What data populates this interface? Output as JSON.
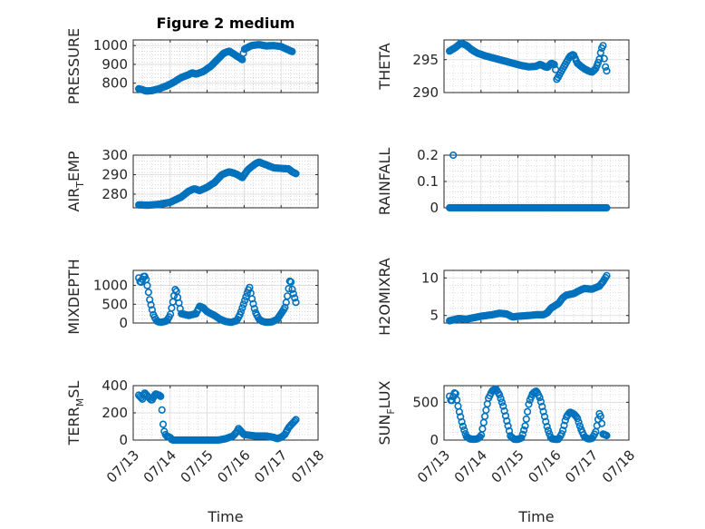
{
  "chart_data": [
    {
      "type": "scatter",
      "title": "Figure 2 medium",
      "ylabel": "PRESSURE",
      "ylabel_sub": "",
      "xlabel": "",
      "xlim": [
        "07/13",
        "07/18"
      ],
      "ylim": [
        750,
        1030
      ],
      "yticks": [
        800,
        900,
        1000
      ],
      "show_xticklabels": false,
      "color": "#0072bd",
      "marker": "circle",
      "grid": true,
      "anchors": [
        [
          0.15,
          770
        ],
        [
          0.25,
          765
        ],
        [
          0.35,
          758
        ],
        [
          0.5,
          760
        ],
        [
          0.7,
          770
        ],
        [
          0.9,
          785
        ],
        [
          1.1,
          805
        ],
        [
          1.3,
          830
        ],
        [
          1.5,
          845
        ],
        [
          1.6,
          855
        ],
        [
          1.7,
          848
        ],
        [
          1.9,
          862
        ],
        [
          2.1,
          890
        ],
        [
          2.3,
          930
        ],
        [
          2.45,
          960
        ],
        [
          2.6,
          970
        ],
        [
          2.8,
          945
        ],
        [
          2.95,
          925
        ],
        [
          3.0,
          980
        ],
        [
          3.2,
          1000
        ],
        [
          3.4,
          1005
        ],
        [
          3.6,
          998
        ],
        [
          3.8,
          1000
        ],
        [
          4.0,
          995
        ],
        [
          4.1,
          985
        ],
        [
          4.3,
          968
        ]
      ]
    },
    {
      "type": "scatter",
      "title": "",
      "ylabel": "THETA",
      "ylabel_sub": "",
      "xlabel": "",
      "xlim": [
        "07/13",
        "07/18"
      ],
      "ylim": [
        290,
        298
      ],
      "yticks": [
        290,
        295
      ],
      "show_xticklabels": false,
      "color": "#0072bd",
      "marker": "circle",
      "grid": true,
      "anchors": [
        [
          0.15,
          296.3
        ],
        [
          0.3,
          296.8
        ],
        [
          0.45,
          297.5
        ],
        [
          0.6,
          297.2
        ],
        [
          0.75,
          296.5
        ],
        [
          0.9,
          296.0
        ],
        [
          1.1,
          295.6
        ],
        [
          1.3,
          295.3
        ],
        [
          1.5,
          295.0
        ],
        [
          1.7,
          294.7
        ],
        [
          1.9,
          294.4
        ],
        [
          2.1,
          294.1
        ],
        [
          2.3,
          293.9
        ],
        [
          2.5,
          294.0
        ],
        [
          2.6,
          294.3
        ],
        [
          2.7,
          294.0
        ],
        [
          2.8,
          293.8
        ],
        [
          2.9,
          294.5
        ],
        [
          3.0,
          294.2
        ],
        [
          3.05,
          292.0
        ],
        [
          3.1,
          292.5
        ],
        [
          3.2,
          293.5
        ],
        [
          3.3,
          294.5
        ],
        [
          3.4,
          295.5
        ],
        [
          3.5,
          295.8
        ],
        [
          3.6,
          294.5
        ],
        [
          3.7,
          294.0
        ],
        [
          3.8,
          293.6
        ],
        [
          3.9,
          293.3
        ],
        [
          4.0,
          293.1
        ],
        [
          4.1,
          293.6
        ],
        [
          4.2,
          295.0
        ],
        [
          4.25,
          296.5
        ],
        [
          4.3,
          297.2
        ],
        [
          4.35,
          294.2
        ],
        [
          4.4,
          293.3
        ]
      ]
    },
    {
      "type": "scatter",
      "title": "",
      "ylabel": "AIR",
      "ylabel_sub": "T",
      "ylabel_suffix": "EMP",
      "xlabel": "",
      "xlim": [
        "07/13",
        "07/18"
      ],
      "ylim": [
        273,
        300
      ],
      "yticks": [
        280,
        290,
        300
      ],
      "show_xticklabels": false,
      "color": "#0072bd",
      "marker": "circle",
      "grid": true,
      "anchors": [
        [
          0.15,
          274.5
        ],
        [
          0.4,
          274.3
        ],
        [
          0.7,
          274.8
        ],
        [
          1.0,
          275.8
        ],
        [
          1.3,
          278.5
        ],
        [
          1.5,
          281.5
        ],
        [
          1.65,
          282.8
        ],
        [
          1.8,
          281.8
        ],
        [
          2.0,
          283.5
        ],
        [
          2.2,
          286.0
        ],
        [
          2.4,
          290.0
        ],
        [
          2.6,
          291.5
        ],
        [
          2.8,
          290.2
        ],
        [
          2.95,
          288.5
        ],
        [
          3.1,
          292.5
        ],
        [
          3.3,
          295.5
        ],
        [
          3.4,
          296.5
        ],
        [
          3.6,
          295.0
        ],
        [
          3.8,
          293.5
        ],
        [
          4.0,
          293.2
        ],
        [
          4.2,
          293.0
        ],
        [
          4.3,
          291.5
        ],
        [
          4.4,
          290.5
        ]
      ]
    },
    {
      "type": "scatter",
      "title": "",
      "ylabel": "RAINFALL",
      "ylabel_sub": "",
      "xlabel": "",
      "xlim": [
        "07/13",
        "07/18"
      ],
      "ylim": [
        0,
        0.2
      ],
      "yticks": [
        0,
        0.1,
        0.2
      ],
      "show_xticklabels": false,
      "color": "#0072bd",
      "marker": "circle",
      "grid": true,
      "anchors": [
        [
          0.15,
          0
        ],
        [
          4.4,
          0
        ]
      ],
      "extra_points": [
        [
          0.25,
          0.2
        ]
      ]
    },
    {
      "type": "scatter",
      "title": "",
      "ylabel": "MIXDEPTH",
      "ylabel_sub": "",
      "xlabel": "",
      "xlim": [
        "07/13",
        "07/18"
      ],
      "ylim": [
        0,
        1400
      ],
      "yticks": [
        0,
        500,
        1000
      ],
      "show_xticklabels": false,
      "color": "#0072bd",
      "marker": "circle",
      "grid": true,
      "anchors": [
        [
          0.15,
          1200
        ],
        [
          0.2,
          1050
        ],
        [
          0.3,
          1280
        ],
        [
          0.35,
          1150
        ],
        [
          0.4,
          900
        ],
        [
          0.45,
          600
        ],
        [
          0.55,
          200
        ],
        [
          0.65,
          40
        ],
        [
          0.75,
          20
        ],
        [
          0.9,
          50
        ],
        [
          1.0,
          200
        ],
        [
          1.1,
          700
        ],
        [
          1.15,
          950
        ],
        [
          1.2,
          700
        ],
        [
          1.3,
          250
        ],
        [
          1.5,
          200
        ],
        [
          1.7,
          250
        ],
        [
          1.8,
          450
        ],
        [
          1.9,
          400
        ],
        [
          2.0,
          300
        ],
        [
          2.1,
          250
        ],
        [
          2.2,
          200
        ],
        [
          2.35,
          100
        ],
        [
          2.5,
          40
        ],
        [
          2.65,
          20
        ],
        [
          2.8,
          60
        ],
        [
          2.9,
          250
        ],
        [
          3.0,
          550
        ],
        [
          3.1,
          850
        ],
        [
          3.15,
          950
        ],
        [
          3.2,
          700
        ],
        [
          3.3,
          300
        ],
        [
          3.4,
          100
        ],
        [
          3.5,
          40
        ],
        [
          3.6,
          20
        ],
        [
          3.75,
          30
        ],
        [
          3.9,
          100
        ],
        [
          4.0,
          250
        ],
        [
          4.1,
          400
        ],
        [
          4.15,
          600
        ],
        [
          4.2,
          900
        ],
        [
          4.25,
          1200
        ],
        [
          4.3,
          900
        ],
        [
          4.4,
          550
        ]
      ]
    },
    {
      "type": "scatter",
      "title": "",
      "ylabel": "H2OMIXRA",
      "ylabel_sub": "",
      "xlabel": "",
      "xlim": [
        "07/13",
        "07/18"
      ],
      "ylim": [
        4,
        11
      ],
      "yticks": [
        5,
        10
      ],
      "show_xticklabels": false,
      "color": "#0072bd",
      "marker": "circle",
      "grid": true,
      "anchors": [
        [
          0.15,
          4.3
        ],
        [
          0.4,
          4.6
        ],
        [
          0.6,
          4.5
        ],
        [
          0.8,
          4.7
        ],
        [
          1.0,
          4.9
        ],
        [
          1.3,
          5.1
        ],
        [
          1.5,
          5.3
        ],
        [
          1.7,
          5.2
        ],
        [
          1.85,
          4.8
        ],
        [
          2.0,
          4.9
        ],
        [
          2.3,
          5.0
        ],
        [
          2.5,
          5.1
        ],
        [
          2.7,
          5.1
        ],
        [
          2.8,
          5.4
        ],
        [
          2.9,
          6.0
        ],
        [
          3.0,
          6.3
        ],
        [
          3.1,
          6.6
        ],
        [
          3.2,
          7.3
        ],
        [
          3.3,
          7.7
        ],
        [
          3.5,
          7.9
        ],
        [
          3.7,
          8.4
        ],
        [
          3.8,
          8.6
        ],
        [
          4.0,
          8.5
        ],
        [
          4.2,
          8.9
        ],
        [
          4.3,
          9.5
        ],
        [
          4.4,
          10.3
        ]
      ]
    },
    {
      "type": "scatter",
      "title": "",
      "ylabel": "TERR",
      "ylabel_sub": "M",
      "ylabel_suffix": "SL",
      "xlabel": "Time",
      "xlim": [
        "07/13",
        "07/18"
      ],
      "ylim": [
        0,
        400
      ],
      "yticks": [
        0,
        200,
        400
      ],
      "xticks": [
        "07/13",
        "07/14",
        "07/15",
        "07/16",
        "07/17",
        "07/18"
      ],
      "show_xticklabels": true,
      "color": "#0072bd",
      "marker": "circle",
      "grid": true,
      "anchors": [
        [
          0.15,
          330
        ],
        [
          0.25,
          300
        ],
        [
          0.3,
          350
        ],
        [
          0.4,
          320
        ],
        [
          0.5,
          290
        ],
        [
          0.6,
          340
        ],
        [
          0.7,
          330
        ],
        [
          0.75,
          320
        ],
        [
          0.8,
          130
        ],
        [
          0.85,
          50
        ],
        [
          0.9,
          30
        ],
        [
          1.0,
          20
        ],
        [
          1.05,
          0
        ],
        [
          1.5,
          0
        ],
        [
          2.0,
          0
        ],
        [
          2.3,
          0
        ],
        [
          2.5,
          10
        ],
        [
          2.7,
          30
        ],
        [
          2.8,
          60
        ],
        [
          2.85,
          85
        ],
        [
          2.9,
          70
        ],
        [
          3.0,
          40
        ],
        [
          3.3,
          30
        ],
        [
          3.6,
          30
        ],
        [
          3.8,
          20
        ],
        [
          3.9,
          10
        ],
        [
          4.0,
          20
        ],
        [
          4.1,
          40
        ],
        [
          4.2,
          90
        ],
        [
          4.3,
          120
        ],
        [
          4.4,
          150
        ]
      ]
    },
    {
      "type": "scatter",
      "title": "",
      "ylabel": "SUN",
      "ylabel_sub": "F",
      "ylabel_suffix": "LUX",
      "xlabel": "Time",
      "xlim": [
        "07/13",
        "07/18"
      ],
      "ylim": [
        0,
        720
      ],
      "yticks": [
        0,
        500
      ],
      "xticks": [
        "07/13",
        "07/14",
        "07/15",
        "07/16",
        "07/17",
        "07/18"
      ],
      "show_xticklabels": true,
      "color": "#0072bd",
      "marker": "circle",
      "grid": true,
      "anchors": [
        [
          0.15,
          580
        ],
        [
          0.2,
          500
        ],
        [
          0.3,
          650
        ],
        [
          0.4,
          400
        ],
        [
          0.5,
          200
        ],
        [
          0.6,
          50
        ],
        [
          0.7,
          15
        ],
        [
          0.8,
          10
        ],
        [
          0.9,
          15
        ],
        [
          1.0,
          50
        ],
        [
          1.1,
          300
        ],
        [
          1.2,
          550
        ],
        [
          1.3,
          650
        ],
        [
          1.4,
          680
        ],
        [
          1.5,
          600
        ],
        [
          1.6,
          450
        ],
        [
          1.7,
          250
        ],
        [
          1.8,
          50
        ],
        [
          1.9,
          10
        ],
        [
          2.0,
          10
        ],
        [
          2.1,
          30
        ],
        [
          2.2,
          200
        ],
        [
          2.3,
          500
        ],
        [
          2.4,
          620
        ],
        [
          2.5,
          650
        ],
        [
          2.6,
          550
        ],
        [
          2.7,
          350
        ],
        [
          2.8,
          150
        ],
        [
          2.9,
          20
        ],
        [
          3.0,
          10
        ],
        [
          3.1,
          10
        ],
        [
          3.2,
          100
        ],
        [
          3.3,
          300
        ],
        [
          3.4,
          370
        ],
        [
          3.5,
          350
        ],
        [
          3.6,
          300
        ],
        [
          3.7,
          150
        ],
        [
          3.8,
          40
        ],
        [
          3.9,
          15
        ],
        [
          4.0,
          20
        ],
        [
          4.1,
          100
        ],
        [
          4.2,
          350
        ],
        [
          4.25,
          300
        ],
        [
          4.3,
          80
        ],
        [
          4.4,
          60
        ]
      ]
    }
  ]
}
